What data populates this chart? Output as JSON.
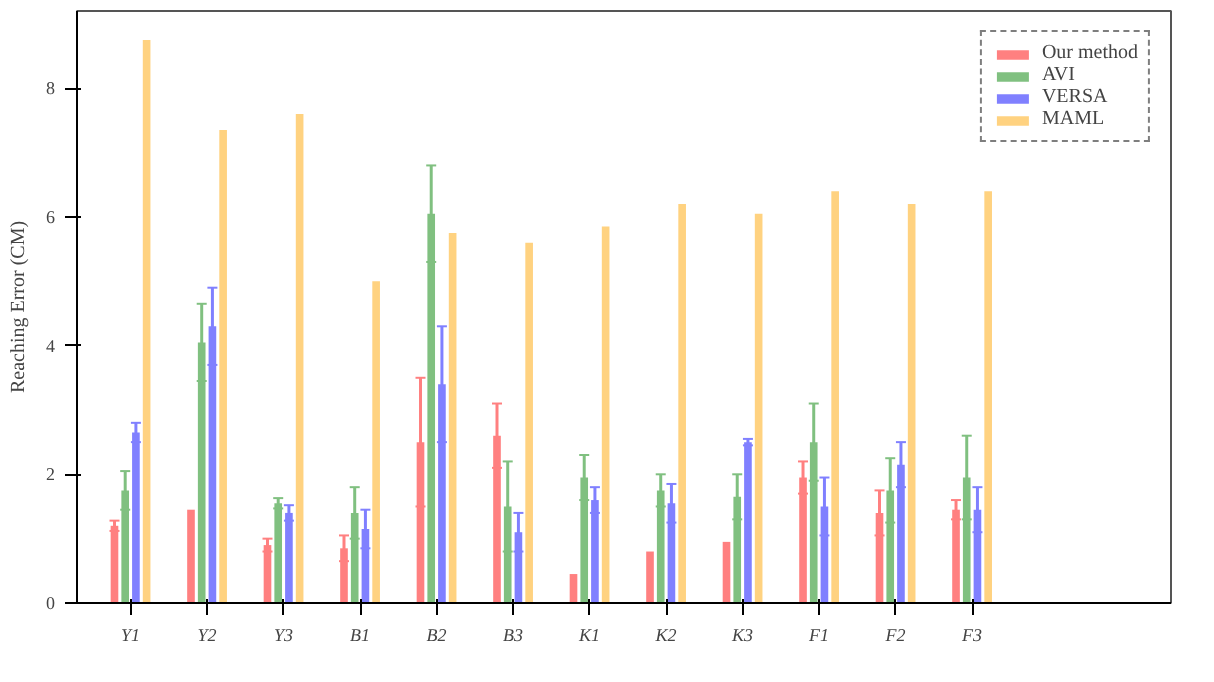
{
  "chart_data": {
    "type": "bar",
    "ylabel": "Reaching Error (CM)",
    "categories": [
      "Y1",
      "Y2",
      "Y3",
      "B1",
      "B2",
      "B3",
      "K1",
      "K2",
      "K3",
      "F1",
      "F2",
      "F3"
    ],
    "series": [
      {
        "name": "Our method",
        "color": "#ff8080",
        "values": [
          1.2,
          1.45,
          0.9,
          0.85,
          2.5,
          2.6,
          0.45,
          0.8,
          0.95,
          1.95,
          1.4,
          1.45
        ],
        "errors": [
          0.08,
          null,
          0.1,
          0.2,
          1.0,
          0.5,
          null,
          null,
          null,
          0.25,
          0.35,
          0.15
        ]
      },
      {
        "name": "AVI",
        "color": "#80c080",
        "values": [
          1.75,
          4.05,
          1.55,
          1.4,
          6.05,
          1.5,
          1.95,
          1.75,
          1.65,
          2.5,
          1.75,
          1.95
        ],
        "errors": [
          0.3,
          0.6,
          0.08,
          0.4,
          0.75,
          0.7,
          0.35,
          0.25,
          0.35,
          0.6,
          0.5,
          0.65
        ]
      },
      {
        "name": "VERSA",
        "color": "#8080ff",
        "values": [
          2.65,
          4.3,
          1.4,
          1.15,
          3.4,
          1.1,
          1.6,
          1.55,
          2.5,
          1.5,
          2.15,
          1.45
        ],
        "errors": [
          0.15,
          0.6,
          0.12,
          0.3,
          0.9,
          0.3,
          0.2,
          0.3,
          0.05,
          0.45,
          0.35,
          0.35
        ]
      },
      {
        "name": "MAML",
        "color": "#ffd280",
        "values": [
          8.75,
          7.35,
          7.6,
          5.0,
          5.75,
          5.6,
          5.85,
          6.2,
          6.05,
          6.4,
          6.2,
          6.4
        ]
      }
    ],
    "ylim": [
      0,
      9.2
    ],
    "yticks": [
      0,
      2,
      4,
      6,
      8
    ],
    "grid": false,
    "legend": "top right"
  }
}
